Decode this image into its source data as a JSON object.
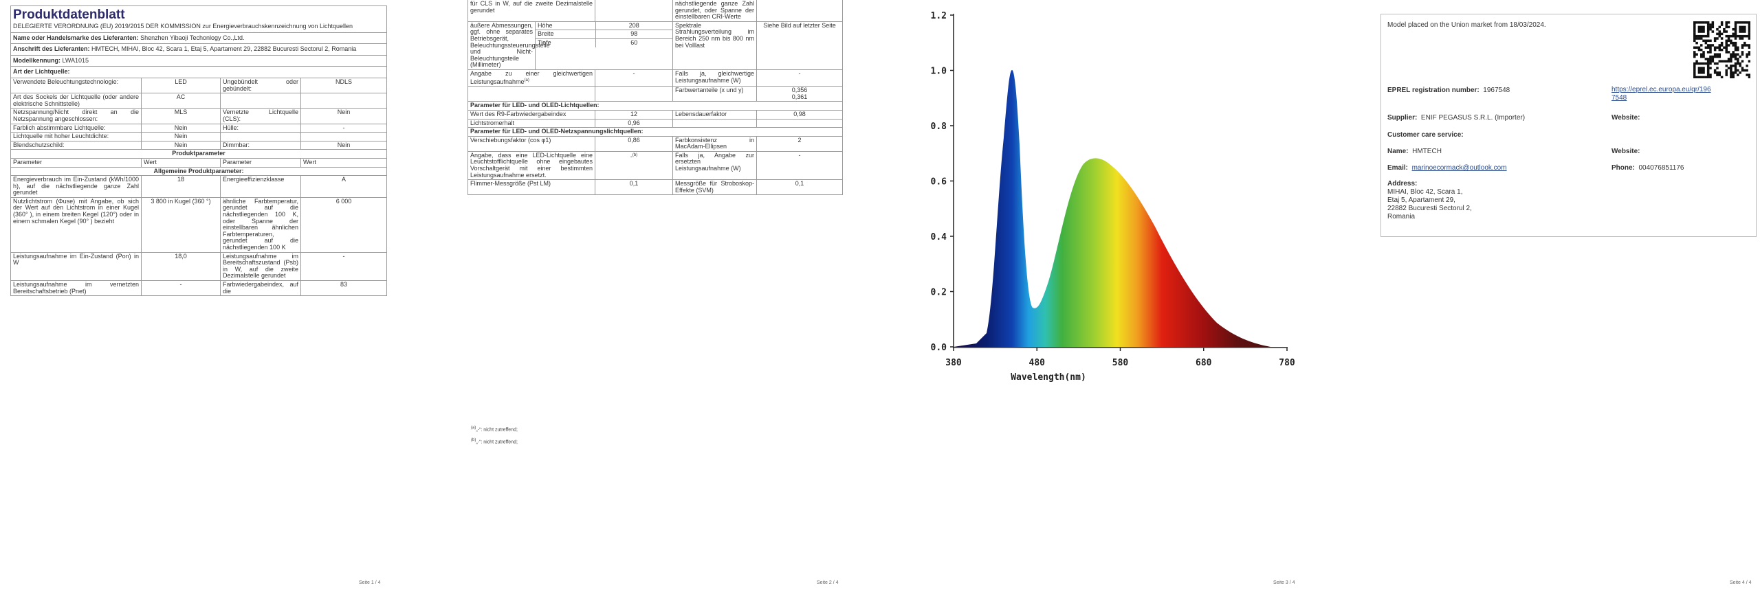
{
  "pages": [
    {
      "title": "Produktdatenblatt",
      "regulation": "DELEGIERTE VERORDNUNG (EU) 2019/2015 DER KOMMISSION zur Energieverbrauchskennzeichnung von Lichtquellen",
      "supplier_name": {
        "label": "Name oder Handelsmarke des Lieferanten:",
        "value": "Shenzhen Yibaoji Techonlogy Co.,Ltd."
      },
      "supplier_address": {
        "label": "Anschrift des Lieferanten:",
        "value": "HMTECH, MIHAI, Bloc 42, Scara 1, Etaj 5, Apartament 29, 22882 Bucuresti Sectorul 2, Romania"
      },
      "model": {
        "label": "Modellkennung:",
        "value": "LWA1015"
      },
      "light_source_type": "Art der Lichtquelle:",
      "light_source_rows": [
        {
          "p1": "Verwendete Beleuchtungstechnologie:",
          "v1": "LED",
          "p2": "Ungebündelt oder gebündelt:",
          "v2": "NDLS"
        },
        {
          "p1": "Art des Sockels der Lichtquelle (oder andere elektrische Schnittstelle)",
          "v1": "AC"
        },
        {
          "p1": "Netzspannung/Nicht direkt an die Netzspannung angeschlossen:",
          "v1": "MLS",
          "p2": "Vernetzte Lichtquelle (CLS):",
          "v2": "Nein"
        },
        {
          "p1": "Farblich abstimmbare Lichtquelle:",
          "v1": "Nein",
          "p2": "Hülle:",
          "v2": "-"
        },
        {
          "p1": "Lichtquelle mit hoher Leuchtdichte:",
          "v1": "Nein"
        },
        {
          "p1": "Blendschutzschild:",
          "v1": "Nein",
          "p2": "Dimmbar:",
          "v2": "Nein"
        }
      ],
      "product_parameters": "Produktparameter",
      "header": [
        "Parameter",
        "Wert",
        "Parameter",
        "Wert"
      ],
      "general_parameters": "Allgemeine Produktparameter:",
      "general_rows": [
        {
          "p1": "Energieverbrauch im Ein-Zustand (kWh/1000 h), auf die nächstliegende ganze Zahl gerundet",
          "v1": "18",
          "p2": "Energieeffizienzklasse",
          "v2": "A"
        },
        {
          "p1": "Nutzlichtstrom (Φuse) mit Angabe, ob sich der Wert auf den Lichtstrom in einer Kugel (360° ), in einem breiten Kegel (120°) oder in einem schmalen Kegel (90° ) bezieht",
          "v1": "3 800 in Kugel (360 °)",
          "p2": "ähnliche Farbtemperatur, gerundet auf die nächstliegenden 100 K, oder Spanne der einstellbaren ähnlichen Farbtemperaturen, gerundet auf die nächstliegenden 100 K",
          "v2": "6 000"
        },
        {
          "p1": "Leistungsaufnahme im Ein-Zustand (Pon) in W",
          "v1": "18,0",
          "p2": "Leistungsaufnahme im Bereitschaftszustand (Psb) in W, auf die zweite Dezimalstelle gerundet",
          "v2": "-"
        },
        {
          "p1": "Leistungsaufnahme im vernetzten Bereitschaftsbetrieb (Pnet)",
          "v1": "-",
          "p2": "Farbwiedergabeindex, auf die",
          "v2": "83"
        }
      ],
      "footer": "Seite 1 / 4"
    },
    {
      "rows": [
        {
          "p1": "für CLS in W, auf die zweite Dezimalstelle gerundet",
          "p2": "nächstliegende ganze Zahl gerundet, oder Spanne der einstellbaren CRI-Werte"
        },
        {
          "p1": "äußere Abmessungen, ggf. ohne separates Betriebsgerät, Beleuchtungssteuerungsteile und Nicht-Beleuchtungsteile (Millimeter)",
          "dims": [
            {
              "name": "Höhe",
              "value": "208"
            },
            {
              "name": "Breite",
              "value": "98"
            },
            {
              "name": "Tiefe",
              "value": "60"
            }
          ],
          "p2": "Spektrale Strahlungsverteilung im Bereich 250 nm bis 800 nm bei Volllast",
          "v2": "Siehe Bild auf letzter Seite"
        },
        {
          "p1": "Angabe zu einer gleichwertigen Leistungsaufnahme",
          "p1_note": "(a)",
          "v1": "-",
          "p2": "Falls ja, gleichwertige Leistungsaufnahme (W)",
          "v2": "-"
        },
        {
          "p2": "Farbwertanteile (x und y)",
          "v2": [
            "0,356",
            "0,361"
          ]
        },
        {
          "section": "Parameter für LED- und OLED-Lichtquellen:"
        },
        {
          "p1": "Wert des R9-Farbwiedergabeindex",
          "v1": "12",
          "p2": "Lebensdauerfaktor",
          "v2": "0,98"
        },
        {
          "p1": "Lichtstromerhalt",
          "v1": "0,96"
        },
        {
          "section": "Parameter für LED- und OLED-Netzspannungslichtquellen:"
        },
        {
          "p1": "Verschiebungsfaktor (cos φ1)",
          "v1": "0,86",
          "p2": "Farbkonsistenz in MacAdam-Ellipsen",
          "v2": "2"
        },
        {
          "p1": "Angabe, dass eine LED-Lichtquelle eine Leuchtstofflichtquelle ohne eingebautes Vorschaltgerät mit einer bestimmten Leistungsaufnahme ersetzt.",
          "v1": "-",
          "v1_note": "(b)",
          "p2": "Falls ja, Angabe zur ersetzten Leistungsaufnahme (W)",
          "v2": "-"
        },
        {
          "p1": "Flimmer-Messgröße (Pst LM)",
          "v1": "0,1",
          "p2": "Messgröße für Stroboskop-Effekte (SVM)",
          "v2": "0,1"
        }
      ],
      "footnotes": [
        {
          "mark": "(a)",
          "text": "„-“: nicht zutreffend;"
        },
        {
          "mark": "(b)",
          "text": "„-“: nicht zutreffend;"
        }
      ],
      "footer": "Seite 2 / 4"
    },
    {
      "yticks": [
        "0.0",
        "0.2",
        "0.4",
        "0.6",
        "0.8",
        "1.0",
        "1.2"
      ],
      "xticks": [
        "380",
        "480",
        "580",
        "680",
        "780"
      ],
      "xlabel": "Wavelength(nm)",
      "footer": "Seite 3 / 4"
    },
    {
      "placed": "Model placed on the Union market from 18/03/2024.",
      "eprel": {
        "label": "EPREL registration number:",
        "value": "1967548",
        "link": "https://eprel.ec.europa.eu/qr/1967548"
      },
      "supplier": {
        "label": "Supplier:",
        "value": "ENIF PEGASUS S.R.L. (Importer)",
        "website": "Website:"
      },
      "customer_care": "Customer care service:",
      "name": {
        "label": "Name:",
        "value": "HMTECH",
        "website": "Website:"
      },
      "email": {
        "label": "Email:",
        "value": "marinoecormack@outlook.com"
      },
      "phone": {
        "label": "Phone:",
        "value": "004076851176"
      },
      "address": {
        "label": "Address:",
        "lines": [
          "MIHAI, Bloc 42, Scara 1,",
          "Etaj 5, Apartament 29,",
          "22882 Bucuresti Sectorul 2,",
          "Romania"
        ]
      },
      "footer": "Seite 4 / 4"
    }
  ]
}
